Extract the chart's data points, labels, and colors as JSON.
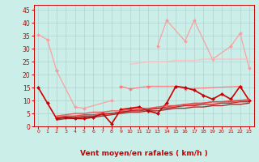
{
  "bg_color": "#cceee8",
  "grid_color": "#aacccc",
  "xlabel": "Vent moyen/en rafales ( km/h )",
  "xlabel_color": "#cc0000",
  "xlabel_fontsize": 6.5,
  "tick_color": "#cc0000",
  "ylim": [
    0,
    47
  ],
  "yticks": [
    0,
    5,
    10,
    15,
    20,
    25,
    30,
    35,
    40,
    45
  ],
  "xticks": [
    0,
    1,
    2,
    3,
    4,
    5,
    6,
    7,
    8,
    9,
    10,
    11,
    12,
    13,
    14,
    15,
    16,
    17,
    18,
    19,
    20,
    21,
    22,
    23
  ],
  "series": [
    {
      "x": [
        0,
        1,
        2
      ],
      "y": [
        35.5,
        33.5,
        21.5
      ],
      "color": "#ff9999",
      "lw": 0.9,
      "marker": "D",
      "ms": 2.0,
      "alpha": 0.9
    },
    {
      "x": [
        2,
        4,
        5,
        8
      ],
      "y": [
        21.5,
        7.5,
        7.0,
        10.0
      ],
      "color": "#ff9999",
      "lw": 0.9,
      "marker": "D",
      "ms": 2.0,
      "alpha": 0.9
    },
    {
      "x": [
        13,
        14,
        16,
        17,
        19,
        21,
        22,
        23
      ],
      "y": [
        31,
        41,
        33,
        41,
        26,
        31,
        36,
        22.5
      ],
      "color": "#ff9999",
      "lw": 0.9,
      "marker": "D",
      "ms": 2.0,
      "alpha": 0.9
    },
    {
      "x": [
        10,
        11,
        12,
        13,
        14,
        15,
        16,
        17,
        18,
        19,
        20,
        21,
        22,
        23
      ],
      "y": [
        24,
        24.5,
        25,
        25,
        25,
        25.5,
        25.5,
        25.5,
        26,
        26,
        26,
        26,
        26,
        26
      ],
      "color": "#ffbbbb",
      "lw": 1.0,
      "marker": null,
      "ms": 0,
      "alpha": 0.85
    },
    {
      "x": [
        9,
        10,
        12,
        15,
        16,
        22
      ],
      "y": [
        15.5,
        14.5,
        15.5,
        15.5,
        14.5,
        15.5
      ],
      "color": "#ff7777",
      "lw": 0.9,
      "marker": "D",
      "ms": 2.0,
      "alpha": 0.9
    },
    {
      "x": [
        0,
        1,
        2,
        3,
        4,
        5,
        6,
        7,
        8,
        9,
        10,
        11,
        12,
        13,
        14,
        15,
        16,
        17,
        18,
        19,
        20,
        21,
        22,
        23
      ],
      "y": [
        15,
        9,
        3,
        3.5,
        3,
        3,
        3.5,
        5,
        1,
        6.5,
        7,
        7.5,
        6,
        5,
        9,
        15.5,
        15,
        14,
        12,
        10.5,
        12.5,
        10.5,
        15.5,
        10
      ],
      "color": "#cc0000",
      "lw": 1.2,
      "marker": "D",
      "ms": 2.0,
      "alpha": 1.0
    },
    {
      "x": [
        2,
        3,
        4,
        5,
        6,
        7,
        8,
        9,
        10,
        11,
        12,
        13,
        14,
        15,
        16,
        17,
        18,
        19,
        20,
        21,
        22,
        23
      ],
      "y": [
        3.5,
        4.0,
        4.0,
        4.5,
        4.5,
        5.0,
        5.0,
        5.5,
        6.0,
        6.5,
        6.5,
        7.0,
        7.5,
        8.0,
        8.5,
        8.5,
        9.0,
        9.5,
        9.5,
        9.5,
        10.0,
        10.0
      ],
      "color": "#dd3333",
      "lw": 1.0,
      "marker": null,
      "ms": 0,
      "alpha": 0.85
    },
    {
      "x": [
        2,
        3,
        4,
        5,
        6,
        7,
        8,
        9,
        10,
        11,
        12,
        13,
        14,
        15,
        16,
        17,
        18,
        19,
        20,
        21,
        22,
        23
      ],
      "y": [
        3.0,
        3.5,
        3.5,
        4.0,
        4.0,
        4.5,
        5.0,
        5.5,
        6.0,
        6.0,
        6.5,
        7.0,
        7.0,
        7.5,
        8.0,
        8.0,
        8.5,
        8.5,
        9.0,
        9.0,
        9.5,
        9.5
      ],
      "color": "#bb1111",
      "lw": 1.0,
      "marker": null,
      "ms": 0,
      "alpha": 0.85
    },
    {
      "x": [
        2,
        3,
        4,
        5,
        6,
        7,
        8,
        9,
        10,
        11,
        12,
        13,
        14,
        15,
        16,
        17,
        18,
        19,
        20,
        21,
        22,
        23
      ],
      "y": [
        4.0,
        4.5,
        5.0,
        5.0,
        5.5,
        5.5,
        6.0,
        6.0,
        6.5,
        7.0,
        7.0,
        7.5,
        8.0,
        8.0,
        8.5,
        9.0,
        9.0,
        9.5,
        9.5,
        10.0,
        10.0,
        10.5
      ],
      "color": "#ee4444",
      "lw": 1.0,
      "marker": null,
      "ms": 0,
      "alpha": 0.85
    },
    {
      "x": [
        2,
        3,
        4,
        5,
        6,
        7,
        8,
        9,
        10,
        11,
        12,
        13,
        14,
        15,
        16,
        17,
        18,
        19,
        20,
        21,
        22,
        23
      ],
      "y": [
        2.5,
        3.0,
        3.0,
        3.5,
        3.5,
        4.0,
        4.5,
        5.0,
        5.5,
        5.5,
        6.0,
        6.0,
        6.5,
        7.0,
        7.0,
        7.5,
        7.5,
        8.0,
        8.0,
        8.5,
        8.5,
        9.0
      ],
      "color": "#991111",
      "lw": 1.0,
      "marker": null,
      "ms": 0,
      "alpha": 0.85
    }
  ],
  "wind_arrows": {
    "x": [
      0,
      1,
      2,
      3,
      4,
      5,
      6,
      7,
      8,
      9,
      10,
      11,
      12,
      13,
      14,
      15,
      16,
      17,
      18,
      19,
      20,
      21,
      22,
      23
    ],
    "angles_deg": [
      90,
      90,
      270,
      180,
      180,
      180,
      180,
      225,
      315,
      270,
      270,
      270,
      270,
      225,
      225,
      45,
      45,
      45,
      45,
      45,
      45,
      45,
      45,
      45
    ]
  }
}
